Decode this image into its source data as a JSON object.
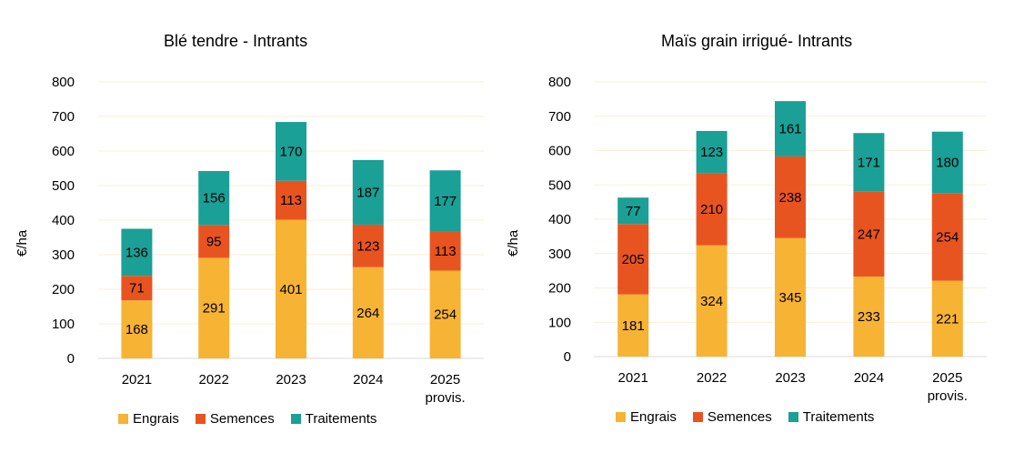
{
  "colors": {
    "engrais": "#F7B334",
    "semences": "#E85420",
    "traitements": "#1AA096",
    "grid": "#FBEFD6"
  },
  "chart_data": [
    {
      "type": "bar",
      "stacked": true,
      "title": "Blé tendre - Intrants",
      "ylabel": "€/ha",
      "ylim": [
        0,
        800
      ],
      "yticks": [
        "0",
        "100",
        "200",
        "300",
        "400",
        "500",
        "600",
        "700",
        "800"
      ],
      "categories": [
        "2021",
        "2022",
        "2023",
        "2024",
        "2025 provis."
      ],
      "category_lines": [
        [
          "2021"
        ],
        [
          "2022"
        ],
        [
          "2023"
        ],
        [
          "2024"
        ],
        [
          "2025",
          "provis."
        ]
      ],
      "series": [
        {
          "name": "Engrais",
          "values": [
            168,
            291,
            401,
            264,
            254
          ]
        },
        {
          "name": "Semences",
          "values": [
            71,
            95,
            113,
            123,
            113
          ]
        },
        {
          "name": "Traitements",
          "values": [
            136,
            156,
            170,
            187,
            177
          ]
        }
      ],
      "grid": true,
      "legend": "bottom"
    },
    {
      "type": "bar",
      "stacked": true,
      "title": "Maïs grain irrigué- Intrants",
      "ylabel": "€/ha",
      "ylim": [
        0,
        800
      ],
      "yticks": [
        "0",
        "100",
        "200",
        "300",
        "400",
        "500",
        "600",
        "700",
        "800"
      ],
      "categories": [
        "2021",
        "2022",
        "2023",
        "2024",
        "2025 provis."
      ],
      "category_lines": [
        [
          "2021"
        ],
        [
          "2022"
        ],
        [
          "2023"
        ],
        [
          "2024"
        ],
        [
          "2025",
          "provis."
        ]
      ],
      "series": [
        {
          "name": "Engrais",
          "values": [
            181,
            324,
            345,
            233,
            221
          ]
        },
        {
          "name": "Semences",
          "values": [
            205,
            210,
            238,
            247,
            254
          ]
        },
        {
          "name": "Traitements",
          "values": [
            77,
            123,
            161,
            171,
            180
          ]
        }
      ],
      "grid": true,
      "legend": "bottom"
    }
  ]
}
